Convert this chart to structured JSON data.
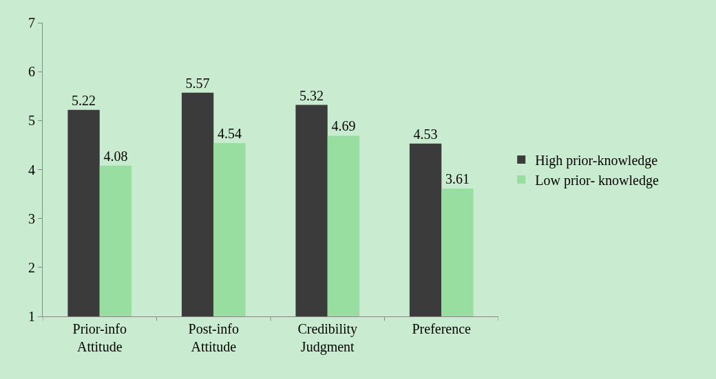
{
  "chart_data": {
    "type": "bar",
    "categories": [
      "Prior-info\nAttitude",
      "Post-info\nAttitude",
      "Credibility\nJudgment",
      "Preference"
    ],
    "series": [
      {
        "name": "High prior-knowledge",
        "color": "#3b3b3b",
        "values": [
          5.22,
          5.57,
          5.32,
          4.53
        ]
      },
      {
        "name": "Low prior- knowledge",
        "color": "#98dea0",
        "values": [
          4.08,
          4.54,
          4.69,
          3.61
        ]
      }
    ],
    "ylim": [
      1,
      7
    ],
    "yticks": [
      1,
      2,
      3,
      4,
      5,
      6,
      7
    ],
    "grid": false,
    "legend": "right",
    "data_labels": true
  }
}
